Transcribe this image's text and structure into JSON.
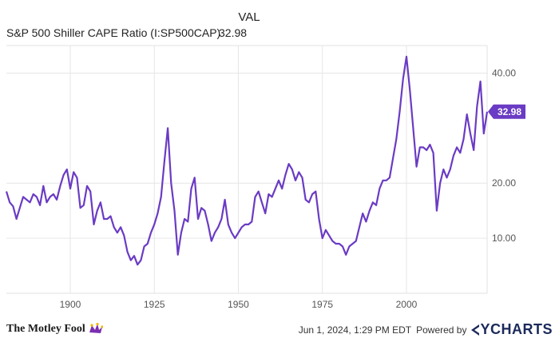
{
  "header": {
    "column_label": "VAL",
    "series_name": "S&P 500 Shiller CAPE Ratio (I:SP500CAP)",
    "series_value": "32.98"
  },
  "footer": {
    "brand": "The Motley Fool",
    "timestamp": "Jun 1, 2024, 1:29 PM EDT",
    "powered_by": "Powered by",
    "provider": "YCHARTS"
  },
  "colors": {
    "series": "#6a3bc4",
    "grid": "#e6e6e6",
    "badge": "#6a3bc4"
  },
  "chart_data": {
    "type": "line",
    "xlim": [
      1881,
      2024
    ],
    "ylim": [
      0,
      45
    ],
    "yticks": [
      10,
      20,
      40
    ],
    "ytick_labels": [
      "10.00",
      "20.00",
      "40.00"
    ],
    "xticks": [
      1900,
      1925,
      1950,
      1975,
      2000
    ],
    "xtick_labels": [
      "1900",
      "1925",
      "1950",
      "1975",
      "2000"
    ],
    "last_value_label": "32.98",
    "grid": true,
    "series": [
      {
        "values": [
          [
            1881,
            18.5
          ],
          [
            1882,
            16.5
          ],
          [
            1883,
            15.8
          ],
          [
            1884,
            13.5
          ],
          [
            1885,
            15.5
          ],
          [
            1886,
            17.5
          ],
          [
            1887,
            17.0
          ],
          [
            1888,
            16.5
          ],
          [
            1889,
            18.0
          ],
          [
            1890,
            17.5
          ],
          [
            1891,
            16.0
          ],
          [
            1892,
            19.5
          ],
          [
            1893,
            16.5
          ],
          [
            1894,
            17.5
          ],
          [
            1895,
            18.0
          ],
          [
            1896,
            17.0
          ],
          [
            1897,
            19.5
          ],
          [
            1898,
            21.5
          ],
          [
            1899,
            22.5
          ],
          [
            1900,
            19.0
          ],
          [
            1901,
            22.0
          ],
          [
            1902,
            21.0
          ],
          [
            1903,
            15.5
          ],
          [
            1904,
            16.0
          ],
          [
            1905,
            19.5
          ],
          [
            1906,
            18.5
          ],
          [
            1907,
            12.5
          ],
          [
            1908,
            15.0
          ],
          [
            1909,
            16.5
          ],
          [
            1910,
            13.5
          ],
          [
            1911,
            13.5
          ],
          [
            1912,
            14.0
          ],
          [
            1913,
            12.0
          ],
          [
            1914,
            11.0
          ],
          [
            1915,
            12.0
          ],
          [
            1916,
            10.5
          ],
          [
            1917,
            7.5
          ],
          [
            1918,
            6.0
          ],
          [
            1919,
            6.8
          ],
          [
            1920,
            5.2
          ],
          [
            1921,
            6.0
          ],
          [
            1922,
            8.5
          ],
          [
            1923,
            9.0
          ],
          [
            1924,
            11.0
          ],
          [
            1925,
            12.5
          ],
          [
            1926,
            14.5
          ],
          [
            1927,
            17.5
          ],
          [
            1928,
            24.0
          ],
          [
            1929,
            30.0
          ],
          [
            1930,
            20.0
          ],
          [
            1931,
            15.0
          ],
          [
            1932,
            7.0
          ],
          [
            1933,
            11.0
          ],
          [
            1934,
            13.5
          ],
          [
            1935,
            13.0
          ],
          [
            1936,
            19.0
          ],
          [
            1937,
            21.0
          ],
          [
            1938,
            13.5
          ],
          [
            1939,
            15.5
          ],
          [
            1940,
            15.0
          ],
          [
            1941,
            12.5
          ],
          [
            1942,
            9.5
          ],
          [
            1943,
            11.0
          ],
          [
            1944,
            12.0
          ],
          [
            1945,
            13.5
          ],
          [
            1946,
            17.0
          ],
          [
            1947,
            12.5
          ],
          [
            1948,
            11.0
          ],
          [
            1949,
            10.0
          ],
          [
            1950,
            11.0
          ],
          [
            1951,
            12.0
          ],
          [
            1952,
            12.5
          ],
          [
            1953,
            12.5
          ],
          [
            1954,
            13.0
          ],
          [
            1955,
            17.5
          ],
          [
            1956,
            18.5
          ],
          [
            1957,
            16.5
          ],
          [
            1958,
            14.5
          ],
          [
            1959,
            18.0
          ],
          [
            1960,
            17.5
          ],
          [
            1961,
            19.0
          ],
          [
            1962,
            20.5
          ],
          [
            1963,
            19.0
          ],
          [
            1964,
            21.5
          ],
          [
            1965,
            23.5
          ],
          [
            1966,
            22.5
          ],
          [
            1967,
            20.5
          ],
          [
            1968,
            22.0
          ],
          [
            1969,
            21.0
          ],
          [
            1970,
            17.0
          ],
          [
            1971,
            16.5
          ],
          [
            1972,
            18.0
          ],
          [
            1973,
            18.5
          ],
          [
            1974,
            13.5
          ],
          [
            1975,
            10.0
          ],
          [
            1976,
            11.5
          ],
          [
            1977,
            10.5
          ],
          [
            1978,
            9.5
          ],
          [
            1979,
            9.0
          ],
          [
            1980,
            9.0
          ],
          [
            1981,
            8.5
          ],
          [
            1982,
            7.0
          ],
          [
            1983,
            8.5
          ],
          [
            1984,
            9.0
          ],
          [
            1985,
            9.5
          ],
          [
            1986,
            12.0
          ],
          [
            1987,
            14.5
          ],
          [
            1988,
            13.0
          ],
          [
            1989,
            15.0
          ],
          [
            1990,
            16.5
          ],
          [
            1991,
            16.0
          ],
          [
            1992,
            19.0
          ],
          [
            1993,
            20.5
          ],
          [
            1994,
            20.5
          ],
          [
            1995,
            21.0
          ],
          [
            1996,
            24.5
          ],
          [
            1997,
            28.0
          ],
          [
            1998,
            33.0
          ],
          [
            1999,
            39.0
          ],
          [
            2000,
            43.0
          ],
          [
            2001,
            37.0
          ],
          [
            2002,
            30.0
          ],
          [
            2003,
            23.0
          ],
          [
            2004,
            26.5
          ],
          [
            2005,
            26.5
          ],
          [
            2006,
            26.0
          ],
          [
            2007,
            27.0
          ],
          [
            2008,
            25.5
          ],
          [
            2009,
            15.0
          ],
          [
            2010,
            20.0
          ],
          [
            2011,
            22.5
          ],
          [
            2012,
            21.0
          ],
          [
            2013,
            22.5
          ],
          [
            2014,
            25.0
          ],
          [
            2015,
            26.5
          ],
          [
            2016,
            25.5
          ],
          [
            2017,
            28.0
          ],
          [
            2018,
            32.5
          ],
          [
            2019,
            29.0
          ],
          [
            2020,
            26.0
          ],
          [
            2021,
            34.0
          ],
          [
            2022,
            38.5
          ],
          [
            2023,
            29.0
          ],
          [
            2024,
            32.98
          ]
        ]
      }
    ]
  }
}
